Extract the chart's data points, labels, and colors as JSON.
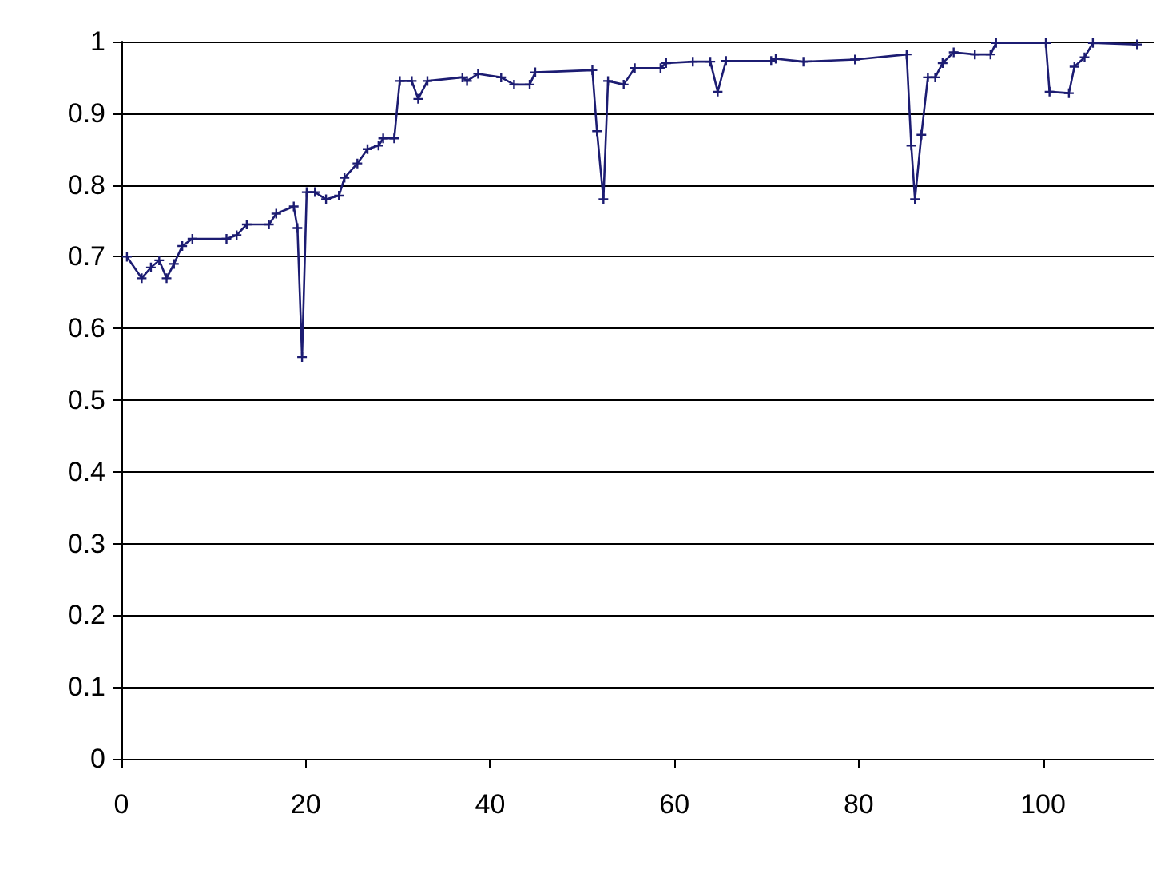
{
  "chart_data": {
    "type": "line",
    "color": "#1c1c72",
    "marker": "cross",
    "line_style": "solid",
    "grid": "y",
    "x": [
      0.6,
      2.2,
      3.2,
      4.1,
      4.9,
      5.7,
      6.6,
      7.7,
      11.4,
      12.5,
      13.6,
      16,
      16.8,
      18.7,
      19.1,
      19.6,
      20.1,
      21,
      22.2,
      23.6,
      24.2,
      25.6,
      26.7,
      27.9,
      28.4,
      29.6,
      30.2,
      31.5,
      32.2,
      33.2,
      37,
      37.5,
      38.7,
      41.2,
      42.6,
      44.3,
      44.9,
      51.1,
      51.6,
      52.3,
      52.8,
      54.5,
      55.7,
      58.5,
      59.1,
      62,
      63.9,
      64.7,
      65.6,
      70.5,
      71,
      74,
      79.6,
      85.2,
      85.7,
      86.1,
      86.8,
      87.5,
      88.3,
      89.1,
      90.3,
      92.6,
      94.3,
      94.9,
      100.3,
      100.7,
      102.8,
      103.4,
      104.5,
      105.4,
      110.2
    ],
    "values": [
      0.7,
      0.67,
      0.685,
      0.695,
      0.67,
      0.69,
      0.715,
      0.725,
      0.725,
      0.73,
      0.745,
      0.745,
      0.76,
      0.77,
      0.74,
      0.56,
      0.79,
      0.79,
      0.78,
      0.785,
      0.81,
      0.83,
      0.85,
      0.855,
      0.865,
      0.865,
      0.945,
      0.945,
      0.92,
      0.945,
      0.95,
      0.945,
      0.955,
      0.95,
      0.94,
      0.94,
      0.957,
      0.96,
      0.875,
      0.78,
      0.945,
      0.94,
      0.963,
      0.963,
      0.97,
      0.972,
      0.972,
      0.93,
      0.973,
      0.973,
      0.976,
      0.972,
      0.975,
      0.982,
      0.855,
      0.78,
      0.87,
      0.95,
      0.95,
      0.97,
      0.985,
      0.982,
      0.982,
      0.998,
      0.998,
      0.93,
      0.928,
      0.965,
      0.978,
      0.998,
      0.996
    ],
    "xlim": [
      0,
      112
    ],
    "xticks": [
      0,
      20,
      40,
      60,
      80,
      100
    ],
    "ylim": [
      0,
      1
    ],
    "yticks": [
      0,
      0.1,
      0.2,
      0.3,
      0.4,
      0.5,
      0.6,
      0.7,
      0.8,
      0.9,
      1
    ]
  }
}
